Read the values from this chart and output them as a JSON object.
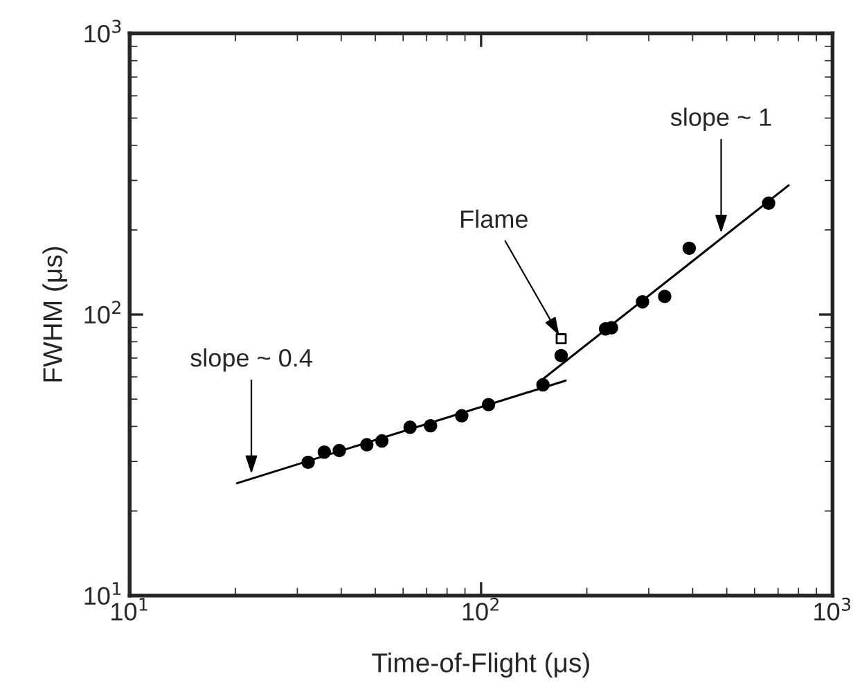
{
  "chart_data": {
    "type": "scatter",
    "xlabel": "Time-of-Flight (μs)",
    "ylabel": "FWHM (μs)",
    "log": "xy",
    "grid": false,
    "xlim": [
      10,
      1000
    ],
    "ylim": [
      10,
      1000
    ],
    "xticks": [
      {
        "value": 10,
        "label": "10$^{1}$"
      },
      {
        "value": 100,
        "label": "10$^{2}$"
      },
      {
        "value": 1000,
        "label": "10$^{3}$"
      }
    ],
    "yticks": [
      {
        "value": 10,
        "label": "10$^{1}$"
      },
      {
        "value": 100,
        "label": "10$^{2}$"
      },
      {
        "value": 1000,
        "label": "10$^{3}$"
      }
    ],
    "series": [
      {
        "marker": "circle",
        "color": "#000000",
        "x": [
          32.2,
          35.8,
          39.5,
          47.3,
          52.2,
          62.8,
          71.8,
          88.1,
          105,
          150,
          169,
          226,
          235,
          288,
          333,
          391,
          658
        ],
        "values": [
          29.8,
          32.4,
          32.8,
          34.4,
          35.5,
          39.7,
          40.2,
          43.6,
          47.8,
          56.2,
          71.4,
          88.9,
          89.7,
          111,
          116,
          172,
          249
        ]
      },
      {
        "marker": "square",
        "color": "#000000",
        "x": [
          169
        ],
        "values": [
          82
        ]
      },
      {
        "type": "line",
        "marker": "none",
        "line_style": "solid",
        "color": "#000000",
        "x": [
          20.2,
          174
        ],
        "values": [
          25.1,
          58.2
        ]
      },
      {
        "type": "line",
        "marker": "none",
        "line_style": "solid",
        "color": "#000000",
        "x": [
          148,
          750
        ],
        "values": [
          58.2,
          288
        ]
      }
    ],
    "annotations": [
      {
        "text": "slope ~ 0.4",
        "x": 22.2,
        "y": 26.3
      },
      {
        "text": "Flame",
        "x": 169,
        "y": 82
      },
      {
        "text": "slope ~ 1",
        "x": 482,
        "y": 189
      }
    ]
  }
}
